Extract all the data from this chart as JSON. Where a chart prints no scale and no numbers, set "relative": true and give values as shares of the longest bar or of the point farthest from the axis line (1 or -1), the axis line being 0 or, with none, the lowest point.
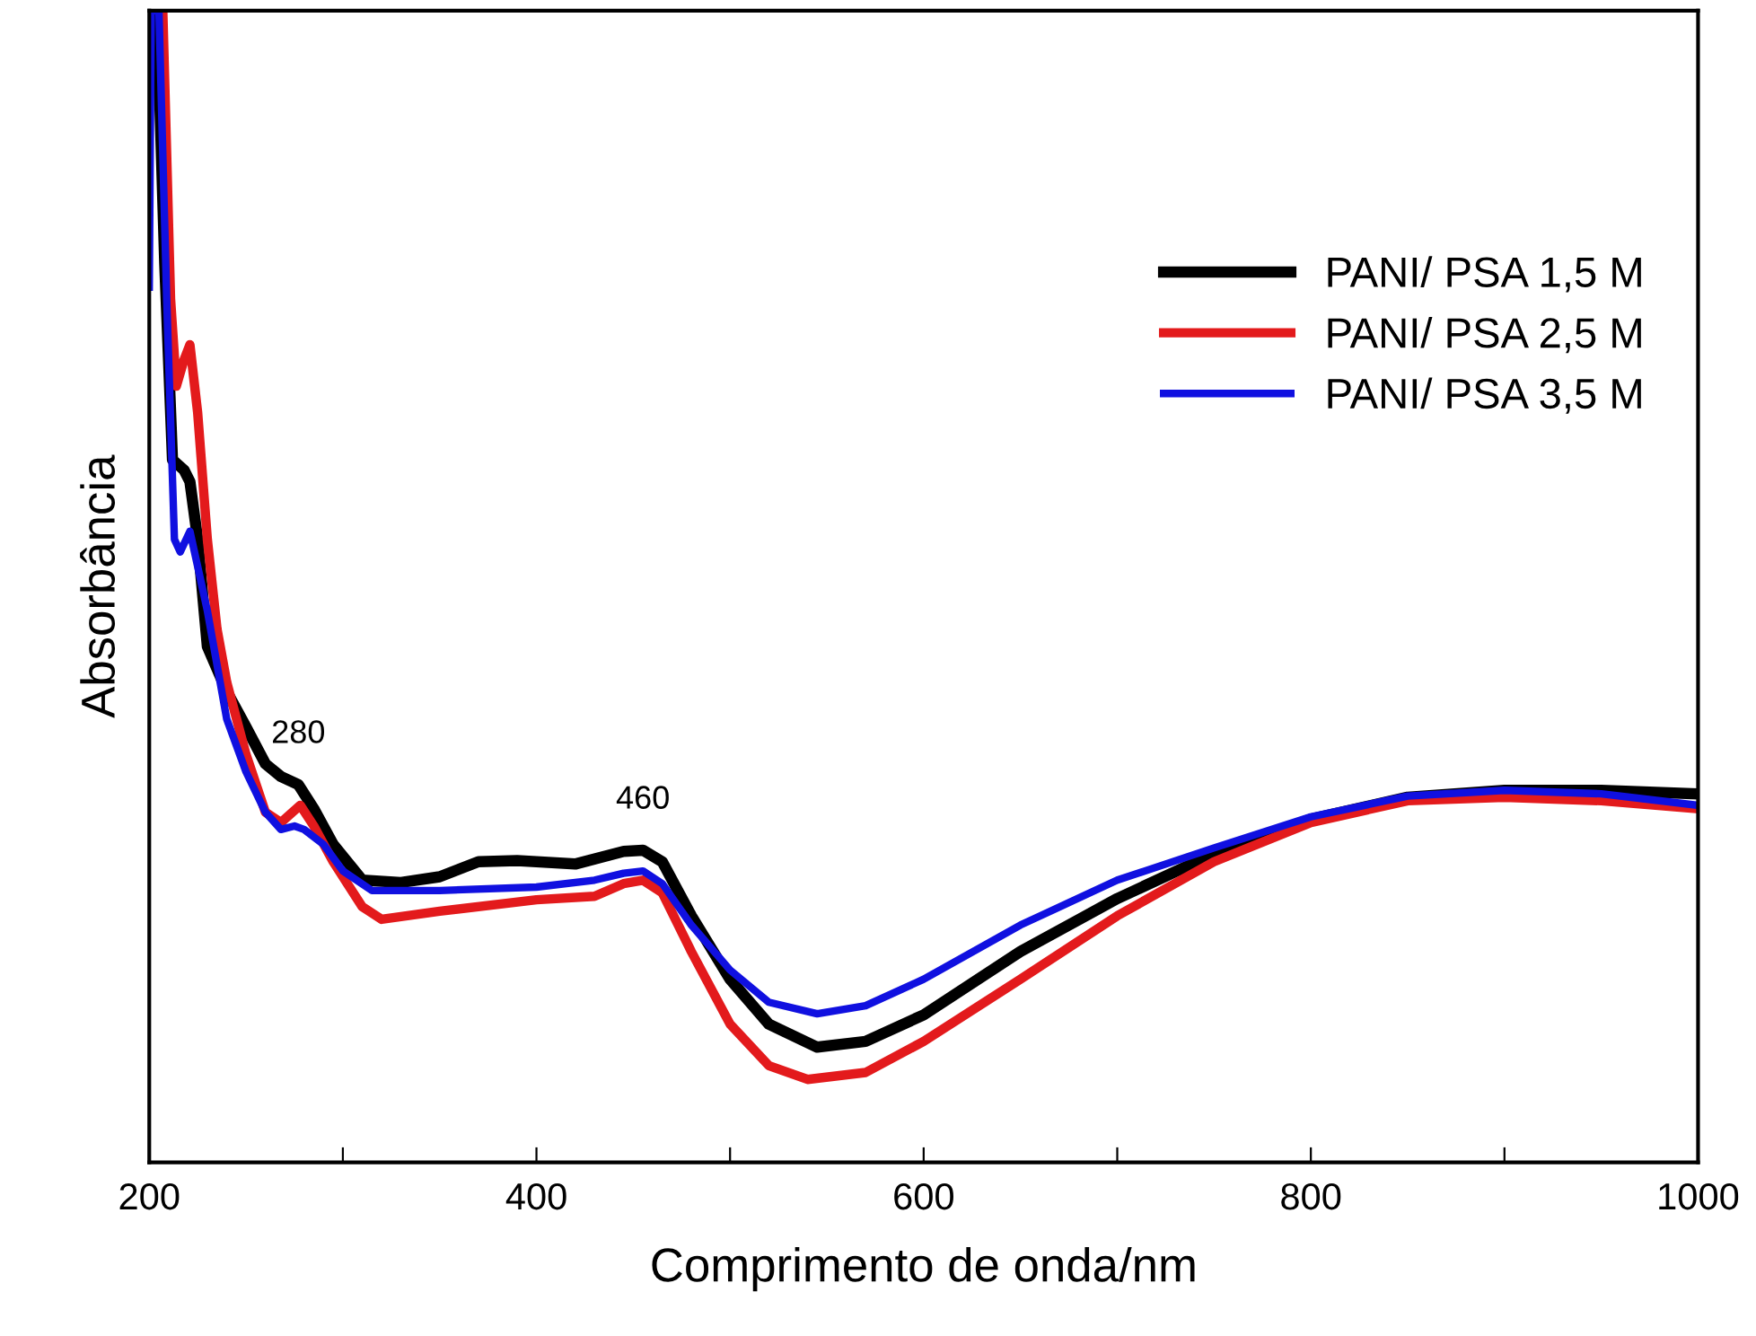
{
  "chart_data": {
    "type": "line",
    "relative": true,
    "xlabel": "Comprimento de onda/nm",
    "ylabel": "Absorbância",
    "xlim": [
      200,
      1000
    ],
    "xticks": [
      200,
      {
        "value": 300,
        "label": null
      },
      400,
      {
        "value": 500,
        "label": null
      },
      600,
      {
        "value": 700,
        "label": null
      },
      800,
      {
        "value": 900,
        "label": null
      },
      1000
    ],
    "legend": "top right",
    "grid": false,
    "marker": "none",
    "line_style": "solid",
    "annotations": [
      {
        "text": "280",
        "x": 277,
        "y": 0.328
      },
      {
        "text": "460",
        "x": 455,
        "y": 0.271
      }
    ],
    "series": [
      {
        "name": "PANI/ PSA 1,5 M",
        "color": "#000000",
        "x": [
          204,
          208,
          212,
          218,
          221,
          225,
          230,
          240,
          250,
          260,
          268,
          277,
          285,
          295,
          310,
          330,
          350,
          370,
          390,
          420,
          445,
          455,
          465,
          480,
          500,
          520,
          545,
          570,
          600,
          650,
          700,
          750,
          800,
          850,
          900,
          950,
          1000
        ],
        "values": [
          1.0,
          0.78,
          0.61,
          0.601,
          0.591,
          0.541,
          0.448,
          0.409,
          0.378,
          0.346,
          0.335,
          0.328,
          0.307,
          0.276,
          0.245,
          0.243,
          0.248,
          0.261,
          0.262,
          0.259,
          0.27,
          0.271,
          0.261,
          0.214,
          0.159,
          0.12,
          0.1,
          0.105,
          0.128,
          0.183,
          0.229,
          0.268,
          0.298,
          0.317,
          0.323,
          0.323,
          0.32
        ]
      },
      {
        "name": "PANI/ PSA 2,5 M",
        "color": "#e31a1c",
        "x": [
          207,
          211,
          214,
          218,
          221,
          225,
          230,
          235,
          240,
          250,
          260,
          268,
          278,
          285,
          295,
          310,
          320,
          350,
          400,
          430,
          445,
          455,
          465,
          480,
          500,
          520,
          540,
          570,
          600,
          650,
          700,
          750,
          800,
          850,
          900,
          950,
          1000
        ],
        "values": [
          1.0,
          0.75,
          0.674,
          0.697,
          0.71,
          0.651,
          0.541,
          0.463,
          0.417,
          0.354,
          0.304,
          0.295,
          0.31,
          0.292,
          0.261,
          0.222,
          0.211,
          0.218,
          0.228,
          0.231,
          0.242,
          0.245,
          0.234,
          0.183,
          0.12,
          0.084,
          0.072,
          0.078,
          0.105,
          0.159,
          0.214,
          0.261,
          0.295,
          0.314,
          0.317,
          0.314,
          0.307
        ]
      },
      {
        "name": "PANI/ PSA 3,5 M",
        "color": "#1010e0",
        "x": [
          200,
          201,
          205,
          209,
          213,
          216,
          221,
          230,
          240,
          250,
          260,
          268,
          275,
          280,
          290,
          300,
          315,
          350,
          400,
          430,
          445,
          455,
          465,
          480,
          500,
          520,
          545,
          570,
          600,
          650,
          700,
          750,
          800,
          850,
          900,
          950,
          1000
        ],
        "values": [
          0.76,
          1.0,
          1.0,
          0.75,
          0.541,
          0.53,
          0.548,
          0.479,
          0.385,
          0.339,
          0.304,
          0.289,
          0.292,
          0.289,
          0.276,
          0.253,
          0.236,
          0.236,
          0.239,
          0.245,
          0.251,
          0.253,
          0.242,
          0.206,
          0.167,
          0.139,
          0.129,
          0.136,
          0.159,
          0.206,
          0.245,
          0.273,
          0.3,
          0.318,
          0.323,
          0.32,
          0.31
        ]
      }
    ]
  }
}
